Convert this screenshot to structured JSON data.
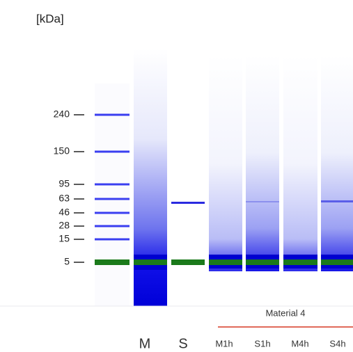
{
  "axis_unit": "[kDa]",
  "ladder_labels": [
    240,
    150,
    95,
    63,
    46,
    28,
    15,
    5
  ],
  "lanes": [
    "M",
    "S",
    "M1h",
    "S1h",
    "M4h",
    "S4h"
  ],
  "group_label": "Material 4"
}
